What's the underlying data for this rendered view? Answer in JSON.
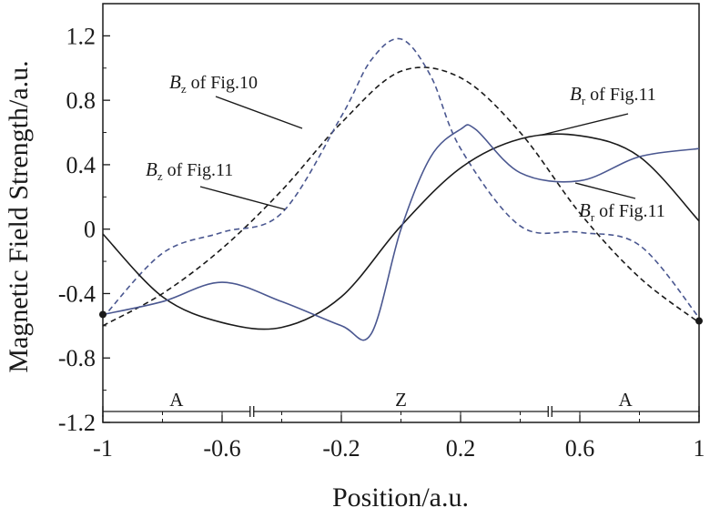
{
  "chart_data": {
    "type": "line",
    "title": "",
    "xlabel": "Position/a.u.",
    "ylabel": "Magnetic Field Strength/a.u.",
    "xlim": [
      -1,
      1
    ],
    "ylim": [
      -1.2,
      1.4
    ],
    "xticks": [
      -1,
      -0.6,
      -0.2,
      0.2,
      0.6,
      1
    ],
    "xtick_labels": [
      "-1",
      "-0.6",
      "-0.2",
      "0.2",
      "0.6",
      "1"
    ],
    "yticks": [
      -1.2,
      -0.8,
      -0.4,
      0,
      0.4,
      0.8,
      1.2
    ],
    "ytick_labels": [
      "-1.2",
      "-0.8",
      "-0.4",
      "0",
      "0.4",
      "0.8",
      "1.2"
    ],
    "grid": false,
    "series": [
      {
        "name": "Bz of Fig.10",
        "style": "dashed",
        "color": "#1a1a1a",
        "x": [
          -1,
          -0.8,
          -0.6,
          -0.4,
          -0.2,
          0,
          0.2,
          0.4,
          0.6,
          0.8,
          1
        ],
        "y": [
          -0.6,
          -0.4,
          -0.12,
          0.24,
          0.66,
          0.98,
          0.94,
          0.6,
          0.1,
          -0.3,
          -0.58
        ]
      },
      {
        "name": "Bz of Fig.11",
        "style": "dashed",
        "color": "#4a5790",
        "x": [
          -1,
          -0.8,
          -0.6,
          -0.4,
          -0.2,
          -0.1,
          0,
          0.1,
          0.2,
          0.4,
          0.6,
          0.8,
          1
        ],
        "y": [
          -0.55,
          -0.15,
          -0.02,
          0.1,
          0.7,
          1.05,
          1.18,
          0.95,
          0.5,
          0.02,
          -0.02,
          -0.1,
          -0.55
        ]
      },
      {
        "name": "Br of Fig.11",
        "style": "solid",
        "color": "#1a1a1a",
        "x": [
          -1,
          -0.8,
          -0.6,
          -0.4,
          -0.2,
          0,
          0.2,
          0.4,
          0.6,
          0.8,
          1
        ],
        "y": [
          -0.03,
          -0.42,
          -0.58,
          -0.61,
          -0.42,
          0.02,
          0.38,
          0.56,
          0.58,
          0.45,
          0.05
        ]
      },
      {
        "name": "Br of Fig.11",
        "style": "solid",
        "color": "#4a5790",
        "x": [
          -1,
          -0.8,
          -0.6,
          -0.4,
          -0.2,
          -0.1,
          0,
          0.1,
          0.2,
          0.25,
          0.4,
          0.6,
          0.8,
          1
        ],
        "y": [
          -0.53,
          -0.45,
          -0.33,
          -0.45,
          -0.6,
          -0.65,
          0.0,
          0.45,
          0.62,
          0.62,
          0.35,
          0.3,
          0.45,
          0.5
        ]
      }
    ],
    "markers": [
      {
        "x": -1,
        "y": -0.53
      },
      {
        "x": 1,
        "y": -0.57
      }
    ],
    "annotations": [
      {
        "sym": "B",
        "sub": "z",
        "rest": " of Fig.10"
      },
      {
        "sym": "B",
        "sub": "z",
        "rest": " of Fig.11"
      },
      {
        "sym": "B",
        "sub": "r",
        "rest": " of Fig.11"
      },
      {
        "sym": "B",
        "sub": "r",
        "rest": " of Fig.11"
      }
    ],
    "regions": [
      {
        "label": "A",
        "from": -1,
        "to": -0.5
      },
      {
        "label": "Z",
        "from": -0.5,
        "to": 0.5
      },
      {
        "label": "A",
        "from": 0.5,
        "to": 1
      }
    ]
  }
}
